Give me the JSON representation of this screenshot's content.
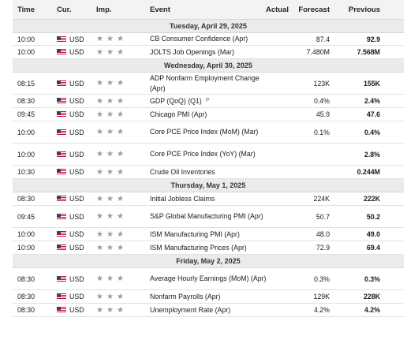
{
  "header": {
    "time": "Time",
    "currency": "Cur.",
    "importance": "Imp.",
    "event": "Event",
    "actual": "Actual",
    "forecast": "Forecast",
    "previous": "Previous"
  },
  "icons": {
    "flag": "us-flag-icon",
    "importance": "star-icon",
    "preliminary": "preliminary-p-icon"
  },
  "colors": {
    "header_bg": "#f3f3f3",
    "date_bg": "#ebebeb",
    "star": "#9a9a9a"
  },
  "days": [
    {
      "date": "Tuesday, April 29, 2025",
      "events": [
        {
          "time": "10:00",
          "currency": "USD",
          "event": "CB Consumer Confidence (Apr)",
          "actual": "",
          "forecast": "87.4",
          "previous": "92.9"
        },
        {
          "time": "10:00",
          "currency": "USD",
          "event": "JOLTS Job Openings (Mar)",
          "actual": "",
          "forecast": "7.480M",
          "previous": "7.568M"
        }
      ]
    },
    {
      "date": "Wednesday, April 30, 2025",
      "events": [
        {
          "time": "08:15",
          "currency": "USD",
          "event": "ADP Nonfarm Employment Change (Apr)",
          "actual": "",
          "forecast": "123K",
          "previous": "155K"
        },
        {
          "time": "08:30",
          "currency": "USD",
          "event": "GDP (QoQ) (Q1)",
          "prelim": "P",
          "actual": "",
          "forecast": "0.4%",
          "previous": "2.4%"
        },
        {
          "time": "09:45",
          "currency": "USD",
          "event": "Chicago PMI (Apr)",
          "actual": "",
          "forecast": "45.9",
          "previous": "47.6"
        },
        {
          "time": "10:00",
          "currency": "USD",
          "event": "Core PCE Price Index (MoM) (Mar)",
          "actual": "",
          "forecast": "0.1%",
          "previous": "0.4%"
        },
        {
          "time": "10:00",
          "currency": "USD",
          "event": "Core PCE Price Index (YoY) (Mar)",
          "actual": "",
          "forecast": "",
          "previous": "2.8%"
        },
        {
          "time": "10:30",
          "currency": "USD",
          "event": "Crude Oil Inventories",
          "actual": "",
          "forecast": "",
          "previous": "0.244M"
        }
      ]
    },
    {
      "date": "Thursday, May 1, 2025",
      "events": [
        {
          "time": "08:30",
          "currency": "USD",
          "event": "Initial Jobless Claims",
          "actual": "",
          "forecast": "224K",
          "previous": "222K"
        },
        {
          "time": "09:45",
          "currency": "USD",
          "event": "S&P Global Manufacturing PMI (Apr)",
          "actual": "",
          "forecast": "50.7",
          "previous": "50.2"
        },
        {
          "time": "10:00",
          "currency": "USD",
          "event": "ISM Manufacturing PMI (Apr)",
          "actual": "",
          "forecast": "48.0",
          "previous": "49.0"
        },
        {
          "time": "10:00",
          "currency": "USD",
          "event": "ISM Manufacturing Prices (Apr)",
          "actual": "",
          "forecast": "72.9",
          "previous": "69.4"
        }
      ]
    },
    {
      "date": "Friday, May 2, 2025",
      "events": [
        {
          "time": "08:30",
          "currency": "USD",
          "event": "Average Hourly Earnings (MoM) (Apr)",
          "actual": "",
          "forecast": "0.3%",
          "previous": "0.3%"
        },
        {
          "time": "08:30",
          "currency": "USD",
          "event": "Nonfarm Payrolls (Apr)",
          "actual": "",
          "forecast": "129K",
          "previous": "228K"
        },
        {
          "time": "08:30",
          "currency": "USD",
          "event": "Unemployment Rate (Apr)",
          "actual": "",
          "forecast": "4.2%",
          "previous": "4.2%"
        }
      ]
    }
  ]
}
